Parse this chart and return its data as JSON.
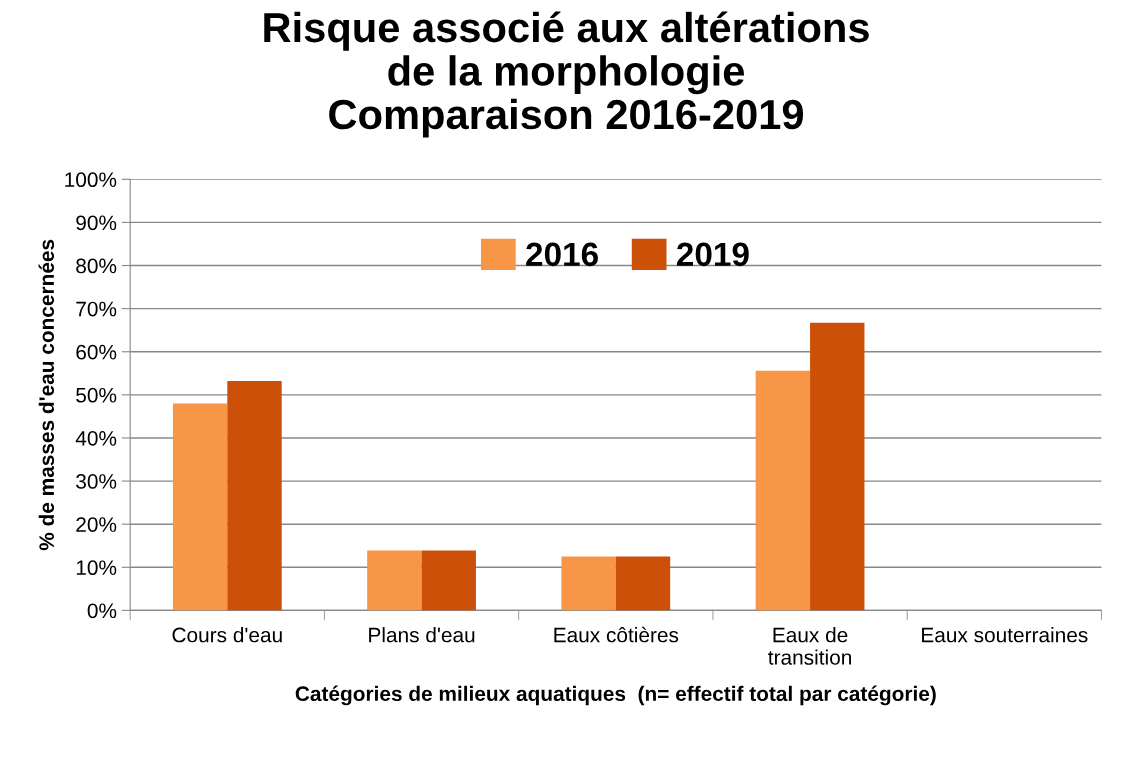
{
  "chart_data": {
    "type": "bar",
    "title": "Risque associé aux altérations\nde la morphologie\nComparaison 2016-2019",
    "xlabel": "Catégories de milieux aquatiques  (n= effectif total par catégorie)",
    "ylabel": "% de masses d'eau concernées",
    "categories": [
      "Cours d'eau",
      "Plans d'eau",
      "Eaux côtières",
      "Eaux de\ntransition",
      "Eaux souterraines"
    ],
    "series": [
      {
        "name": "2016",
        "color": "#f79646",
        "values": [
          48,
          13.9,
          12.5,
          55.6,
          0
        ]
      },
      {
        "name": "2019",
        "color": "#cc5008",
        "values": [
          53.2,
          13.9,
          12.5,
          66.7,
          0
        ]
      }
    ],
    "ylim": [
      0,
      100
    ],
    "yticks": [
      {
        "value": 0,
        "label": "0%"
      },
      {
        "value": 10,
        "label": "10%"
      },
      {
        "value": 20,
        "label": "20%"
      },
      {
        "value": 30,
        "label": "30%"
      },
      {
        "value": 40,
        "label": "40%"
      },
      {
        "value": 50,
        "label": "50%"
      },
      {
        "value": 60,
        "label": "60%"
      },
      {
        "value": 70,
        "label": "70%"
      },
      {
        "value": 80,
        "label": "80%"
      },
      {
        "value": 90,
        "label": "90%"
      },
      {
        "value": 100,
        "label": "100%"
      }
    ],
    "grid": "y",
    "legend": "top"
  }
}
